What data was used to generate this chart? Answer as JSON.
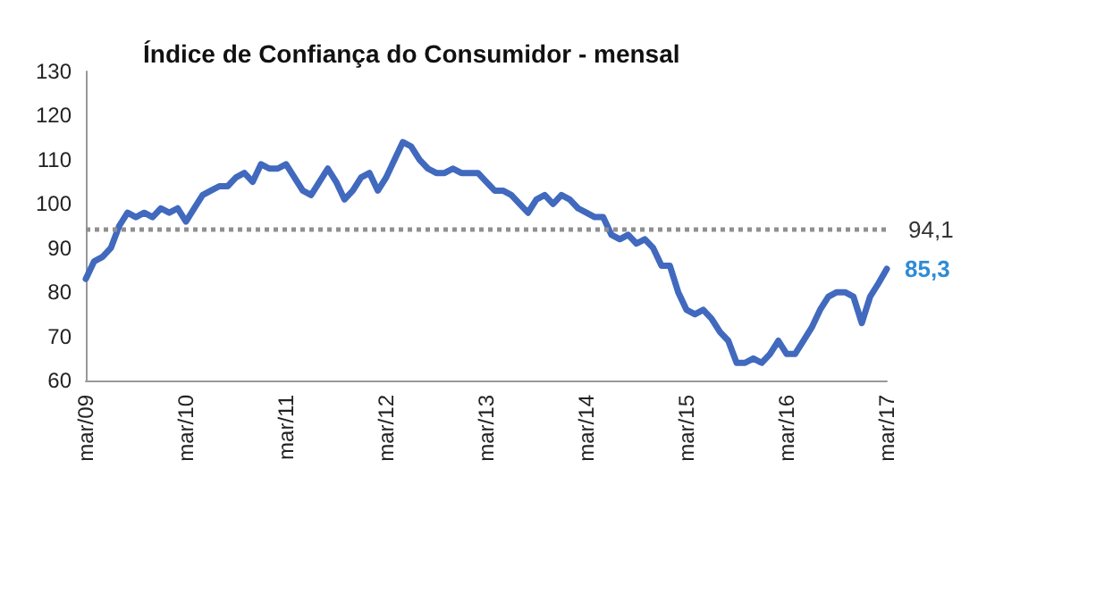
{
  "chart_data": {
    "type": "line",
    "title": "Índice de Confiança do Consumidor - mensal",
    "categories": [
      "mar/09",
      null,
      null,
      null,
      null,
      null,
      null,
      null,
      null,
      null,
      null,
      null,
      "mar/10",
      null,
      null,
      null,
      null,
      null,
      null,
      null,
      null,
      null,
      null,
      null,
      "mar/11",
      null,
      null,
      null,
      null,
      null,
      null,
      null,
      null,
      null,
      null,
      null,
      "mar/12",
      null,
      null,
      null,
      null,
      null,
      null,
      null,
      null,
      null,
      null,
      null,
      "mar/13",
      null,
      null,
      null,
      null,
      null,
      null,
      null,
      null,
      null,
      null,
      null,
      "mar/14",
      null,
      null,
      null,
      null,
      null,
      null,
      null,
      null,
      null,
      null,
      null,
      "mar/15",
      null,
      null,
      null,
      null,
      null,
      null,
      null,
      null,
      null,
      null,
      null,
      "mar/16",
      null,
      null,
      null,
      null,
      null,
      null,
      null,
      null,
      null,
      null,
      null,
      "mar/17"
    ],
    "series": [
      {
        "color": "#4169be",
        "values": [
          83,
          87,
          88,
          90,
          95,
          98,
          97,
          98,
          97,
          99,
          98,
          99,
          96,
          99,
          102,
          103,
          104,
          104,
          106,
          107,
          105,
          109,
          108,
          108,
          109,
          106,
          103,
          102,
          105,
          108,
          105,
          101,
          103,
          106,
          107,
          103,
          106,
          110,
          114,
          113,
          110,
          108,
          107,
          107,
          108,
          107,
          107,
          107,
          105,
          103,
          103,
          102,
          100,
          98,
          101,
          102,
          100,
          102,
          101,
          99,
          98,
          97,
          97,
          93,
          92,
          93,
          91,
          92,
          90,
          86,
          86,
          80,
          76,
          75,
          76,
          74,
          71,
          69,
          64,
          64,
          65,
          64,
          66,
          69,
          66,
          66,
          69,
          72,
          76,
          79,
          80,
          80,
          79,
          73,
          79,
          82,
          85.3
        ]
      }
    ],
    "ylim": [
      60,
      130
    ],
    "yticks": [
      60,
      70,
      80,
      90,
      100,
      110,
      120,
      130
    ],
    "ref_lines": [
      {
        "axis": "y",
        "value": 94.1,
        "label": "94,1",
        "color": "#909090",
        "line_style": "dotted"
      }
    ],
    "annotations": [
      {
        "text": "85,3",
        "x": "mar/17",
        "y": 85.3
      }
    ],
    "grid": false,
    "marker": "none",
    "line_style": "solid"
  }
}
